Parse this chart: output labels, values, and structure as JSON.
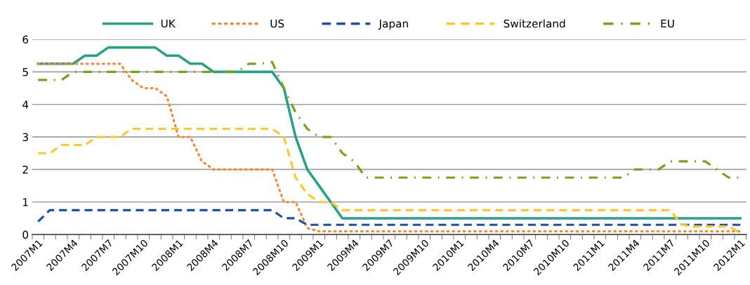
{
  "chart_data": {
    "type": "line",
    "categories": [
      "2007M1",
      null,
      null,
      "2007M4",
      null,
      null,
      "2007M7",
      null,
      null,
      "2007M10",
      null,
      null,
      "2008M1",
      null,
      null,
      "2008M4",
      null,
      null,
      "2008M7",
      null,
      null,
      "2008M10",
      null,
      null,
      "2009M1",
      null,
      null,
      "2009M4",
      null,
      null,
      "2009M7",
      null,
      null,
      "2009M10",
      null,
      null,
      "2010M1",
      null,
      null,
      "2010M4",
      null,
      null,
      "2010M7",
      null,
      null,
      "2010M10",
      null,
      null,
      "2011M1",
      null,
      null,
      "2011M4",
      null,
      null,
      "2011M7",
      null,
      null,
      "2011M10",
      null,
      null,
      "2012M1"
    ],
    "series": [
      {
        "name": "UK",
        "color": "#2aa086",
        "line_style": "solid",
        "values": [
          5.25,
          5.25,
          5.25,
          5.25,
          5.5,
          5.5,
          5.75,
          5.75,
          5.75,
          5.75,
          5.75,
          5.5,
          5.5,
          5.25,
          5.25,
          5.0,
          5.0,
          5.0,
          5.0,
          5.0,
          5.0,
          4.5,
          3.0,
          2.0,
          1.5,
          1.0,
          0.5,
          0.5,
          0.5,
          0.5,
          0.5,
          0.5,
          0.5,
          0.5,
          0.5,
          0.5,
          0.5,
          0.5,
          0.5,
          0.5,
          0.5,
          0.5,
          0.5,
          0.5,
          0.5,
          0.5,
          0.5,
          0.5,
          0.5,
          0.5,
          0.5,
          0.5,
          0.5,
          0.5,
          0.5,
          0.5,
          0.5,
          0.5,
          0.5,
          0.5,
          0.5
        ]
      },
      {
        "name": "US",
        "color": "#f28b3c",
        "line_style": "dotted",
        "values": [
          5.25,
          5.25,
          5.25,
          5.25,
          5.25,
          5.25,
          5.25,
          5.25,
          4.75,
          4.5,
          4.5,
          4.25,
          3.0,
          3.0,
          2.25,
          2.0,
          2.0,
          2.0,
          2.0,
          2.0,
          2.0,
          1.0,
          1.0,
          0.2,
          0.1,
          0.1,
          0.1,
          0.1,
          0.1,
          0.1,
          0.1,
          0.1,
          0.1,
          0.1,
          0.1,
          0.1,
          0.1,
          0.1,
          0.1,
          0.1,
          0.1,
          0.1,
          0.1,
          0.1,
          0.1,
          0.1,
          0.1,
          0.1,
          0.1,
          0.1,
          0.1,
          0.1,
          0.1,
          0.1,
          0.1,
          0.1,
          0.1,
          0.1,
          0.1,
          0.1,
          0.1
        ]
      },
      {
        "name": "Japan",
        "color": "#1f4fa8",
        "line_style": "dashed",
        "values": [
          0.4,
          0.75,
          0.75,
          0.75,
          0.75,
          0.75,
          0.75,
          0.75,
          0.75,
          0.75,
          0.75,
          0.75,
          0.75,
          0.75,
          0.75,
          0.75,
          0.75,
          0.75,
          0.75,
          0.75,
          0.75,
          0.5,
          0.5,
          0.3,
          0.3,
          0.3,
          0.3,
          0.3,
          0.3,
          0.3,
          0.3,
          0.3,
          0.3,
          0.3,
          0.3,
          0.3,
          0.3,
          0.3,
          0.3,
          0.3,
          0.3,
          0.3,
          0.3,
          0.3,
          0.3,
          0.3,
          0.3,
          0.3,
          0.3,
          0.3,
          0.3,
          0.3,
          0.3,
          0.3,
          0.3,
          0.3,
          0.3,
          0.3,
          0.3,
          0.3,
          0.3
        ]
      },
      {
        "name": "Switzerland",
        "color": "#ffc832",
        "line_style": "dashed",
        "values": [
          2.5,
          2.5,
          2.75,
          2.75,
          2.75,
          3.0,
          3.0,
          3.0,
          3.25,
          3.25,
          3.25,
          3.25,
          3.25,
          3.25,
          3.25,
          3.25,
          3.25,
          3.25,
          3.25,
          3.25,
          3.25,
          3.0,
          1.75,
          1.25,
          1.0,
          1.0,
          0.75,
          0.75,
          0.75,
          0.75,
          0.75,
          0.75,
          0.75,
          0.75,
          0.75,
          0.75,
          0.75,
          0.75,
          0.75,
          0.75,
          0.75,
          0.75,
          0.75,
          0.75,
          0.75,
          0.75,
          0.75,
          0.75,
          0.75,
          0.75,
          0.75,
          0.75,
          0.75,
          0.75,
          0.75,
          0.3,
          0.25,
          0.25,
          0.25,
          0.25,
          0.05
        ]
      },
      {
        "name": "EU",
        "color": "#76a21e",
        "line_style": "dashdot",
        "values": [
          4.75,
          4.75,
          4.75,
          5.0,
          5.0,
          5.0,
          5.0,
          5.0,
          5.0,
          5.0,
          5.0,
          5.0,
          5.0,
          5.0,
          5.0,
          5.0,
          5.0,
          5.0,
          5.25,
          5.25,
          5.3,
          4.5,
          3.75,
          3.25,
          3.0,
          3.0,
          2.5,
          2.25,
          1.75,
          1.75,
          1.75,
          1.75,
          1.75,
          1.75,
          1.75,
          1.75,
          1.75,
          1.75,
          1.75,
          1.75,
          1.75,
          1.75,
          1.75,
          1.75,
          1.75,
          1.75,
          1.75,
          1.75,
          1.75,
          1.75,
          1.75,
          2.0,
          2.0,
          2.0,
          2.25,
          2.25,
          2.25,
          2.25,
          2.0,
          1.75,
          1.75
        ]
      }
    ],
    "ylim": [
      0,
      6
    ],
    "yticks": [
      0,
      1,
      2,
      3,
      4,
      5,
      6
    ],
    "grid": "y",
    "legend": "top"
  }
}
